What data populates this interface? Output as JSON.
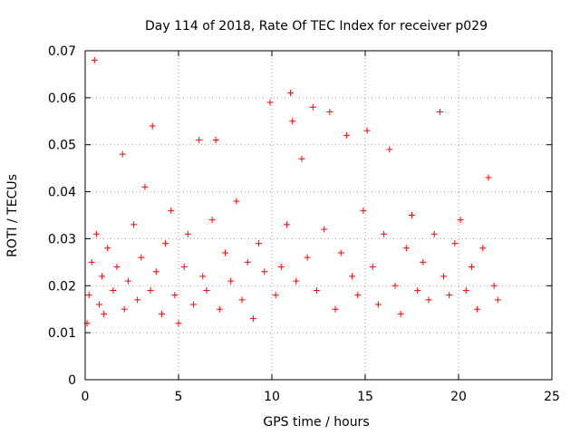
{
  "chart_data": {
    "type": "scatter",
    "title": "Day 114 of 2018, Rate Of TEC Index for receiver p029",
    "xlabel": "GPS time / hours",
    "ylabel": "ROTI / TECUs",
    "xlim": [
      0,
      25
    ],
    "ylim": [
      0,
      0.07
    ],
    "x_ticks": [
      "0",
      "5",
      "10",
      "15",
      "20",
      "25"
    ],
    "y_ticks": [
      "0",
      "0.01",
      "0.02",
      "0.03",
      "0.04",
      "0.05",
      "0.06",
      "0.07"
    ],
    "grid": true,
    "marker": "+",
    "color": "#ff0000",
    "series": [
      {
        "x": [
          0.1,
          0.2,
          0.35,
          0.5,
          0.6,
          0.75,
          0.9,
          1.0,
          1.2,
          1.5,
          1.7,
          2.0,
          2.1,
          2.3,
          2.6,
          2.8,
          3.0,
          3.2,
          3.5,
          3.6,
          3.8,
          4.1,
          4.3,
          4.6,
          4.8,
          5.0,
          5.3,
          5.5,
          5.8,
          6.1,
          6.3,
          6.5,
          6.8,
          7.0,
          7.2,
          7.5,
          7.8,
          8.1,
          8.4,
          8.7,
          9.0,
          9.3,
          9.6,
          9.9,
          10.2,
          10.5,
          10.8,
          11.0,
          11.1,
          11.3,
          11.6,
          11.9,
          12.2,
          12.4,
          12.8,
          13.1,
          13.4,
          13.7,
          14.0,
          14.3,
          14.6,
          14.9,
          15.1,
          15.4,
          15.7,
          16.0,
          16.3,
          16.6,
          16.9,
          17.2,
          17.5,
          17.8,
          18.1,
          18.4,
          18.7,
          19.0,
          19.2,
          19.5,
          19.8,
          20.1,
          20.4,
          20.7,
          21.0,
          21.3,
          21.6,
          21.9,
          22.1
        ],
        "y": [
          0.012,
          0.018,
          0.025,
          0.068,
          0.031,
          0.016,
          0.022,
          0.014,
          0.028,
          0.019,
          0.024,
          0.048,
          0.015,
          0.021,
          0.033,
          0.017,
          0.026,
          0.041,
          0.019,
          0.054,
          0.023,
          0.014,
          0.029,
          0.036,
          0.018,
          0.012,
          0.024,
          0.031,
          0.016,
          0.051,
          0.022,
          0.019,
          0.034,
          0.051,
          0.015,
          0.027,
          0.021,
          0.038,
          0.017,
          0.025,
          0.013,
          0.029,
          0.023,
          0.059,
          0.018,
          0.024,
          0.033,
          0.061,
          0.055,
          0.021,
          0.047,
          0.026,
          0.058,
          0.019,
          0.032,
          0.057,
          0.015,
          0.027,
          0.052,
          0.022,
          0.018,
          0.036,
          0.053,
          0.024,
          0.016,
          0.031,
          0.049,
          0.02,
          0.014,
          0.028,
          0.035,
          0.019,
          0.025,
          0.017,
          0.031,
          0.057,
          0.022,
          0.018,
          0.029,
          0.034,
          0.019,
          0.024,
          0.015,
          0.028,
          0.043,
          0.02,
          0.017
        ]
      }
    ]
  }
}
